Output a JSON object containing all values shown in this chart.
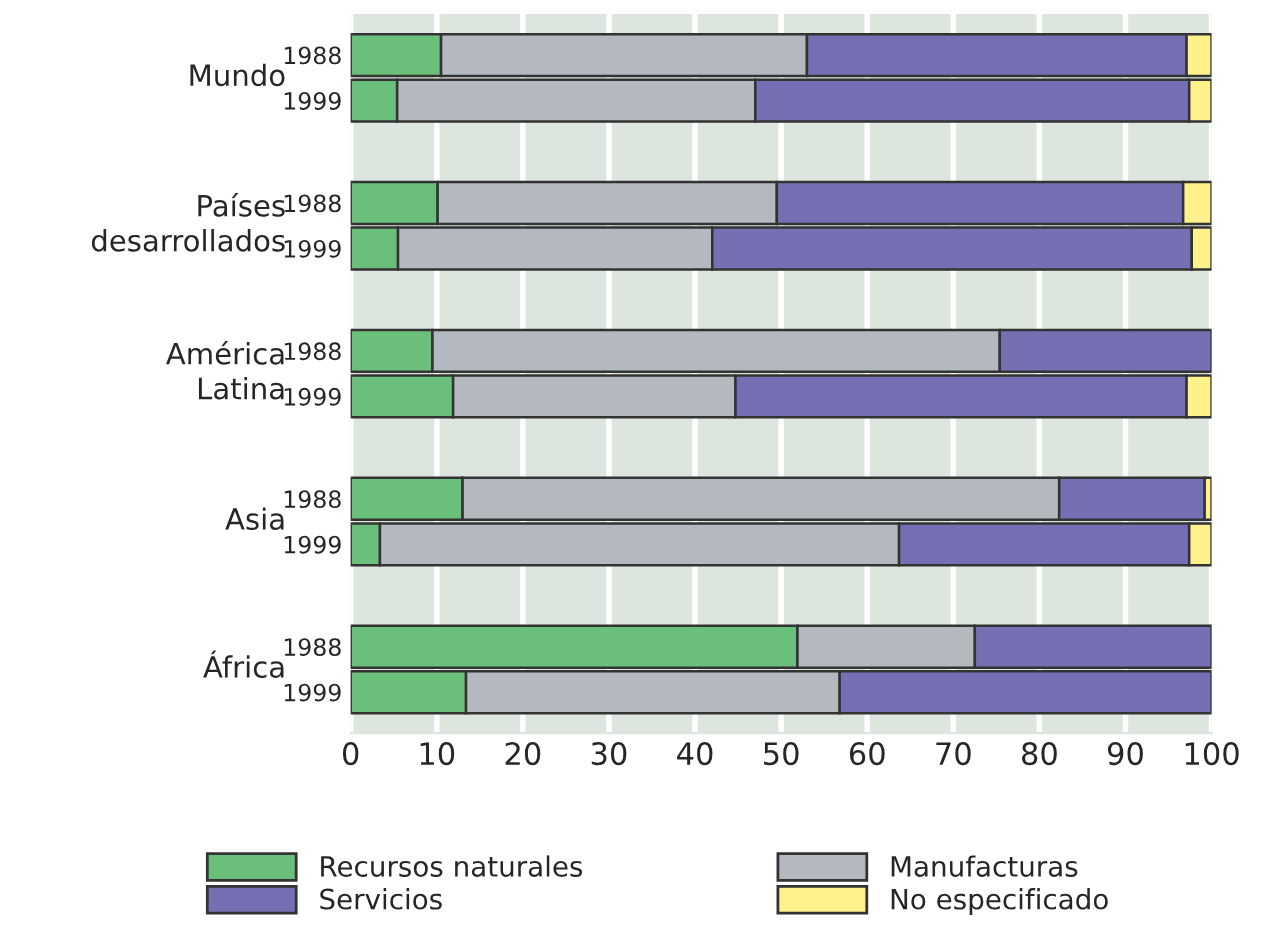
{
  "chart_data": {
    "type": "bar",
    "orientation": "horizontal",
    "stacked": true,
    "categories": [
      "1988",
      "1999",
      "1988",
      "1999",
      "1988",
      "1999",
      "1988",
      "1999",
      "1988",
      "1999"
    ],
    "series": [
      {
        "name": "Recursos naturales",
        "color": "#6abf7a",
        "values": [
          10.5,
          5.4,
          10.1,
          5.5,
          9.5,
          11.9,
          13.0,
          3.4,
          51.9,
          13.4
        ]
      },
      {
        "name": "Manufacturas",
        "color": "#b3b9bf",
        "values": [
          42.5,
          41.6,
          39.4,
          36.5,
          65.9,
          32.8,
          69.3,
          60.3,
          20.6,
          43.4
        ]
      },
      {
        "name": "Servicios",
        "color": "#7570b3",
        "values": [
          44.1,
          50.4,
          47.2,
          55.7,
          24.6,
          52.4,
          16.9,
          33.7,
          27.5,
          43.2
        ]
      },
      {
        "name": "No especificado",
        "color": "#fef08a",
        "values": [
          2.9,
          2.6,
          3.3,
          2.3,
          0,
          2.9,
          0.8,
          2.6,
          0,
          0
        ]
      }
    ],
    "annotations": [
      "Mundo",
      "Países\ndesarrollados",
      "América\nLatina",
      "Asia",
      "África"
    ],
    "xlim": [
      0,
      100
    ],
    "xticks": [
      0,
      10,
      20,
      30,
      40,
      50,
      60,
      70,
      80,
      90,
      100
    ],
    "grid": "x",
    "legend": "bottom"
  }
}
